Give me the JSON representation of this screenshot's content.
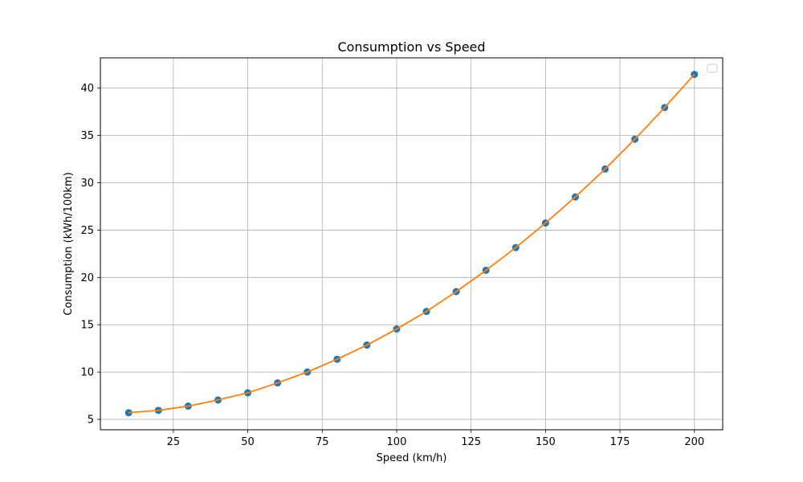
{
  "chart_data": {
    "type": "line",
    "title": "Consumption vs Speed",
    "xlabel": "Speed (km/h)",
    "ylabel": "Consumption (kWh/100km)",
    "xlim": [
      0.5,
      209.5
    ],
    "ylim": [
      3.9,
      43.2
    ],
    "xticks": [
      25,
      50,
      75,
      100,
      125,
      150,
      175,
      200
    ],
    "yticks": [
      5,
      10,
      15,
      20,
      25,
      30,
      35,
      40
    ],
    "grid": true,
    "legend": "top-right",
    "x": [
      10,
      20,
      30,
      40,
      50,
      60,
      70,
      80,
      90,
      100,
      110,
      120,
      130,
      140,
      150,
      160,
      170,
      180,
      190,
      200
    ],
    "series": [
      {
        "style": "scatter",
        "color": "#1f77b4",
        "values": [
          5.7,
          5.95,
          6.4,
          7.05,
          7.8,
          8.85,
          10.0,
          11.35,
          12.85,
          14.55,
          16.4,
          18.5,
          20.75,
          23.15,
          25.75,
          28.5,
          31.45,
          34.6,
          37.95,
          41.45
        ]
      },
      {
        "style": "line",
        "color": "#ff7f0e",
        "values": [
          5.7,
          5.95,
          6.4,
          7.05,
          7.8,
          8.85,
          10.0,
          11.35,
          12.85,
          14.55,
          16.4,
          18.5,
          20.75,
          23.15,
          25.75,
          28.5,
          31.45,
          34.6,
          37.95,
          41.45
        ]
      }
    ]
  }
}
